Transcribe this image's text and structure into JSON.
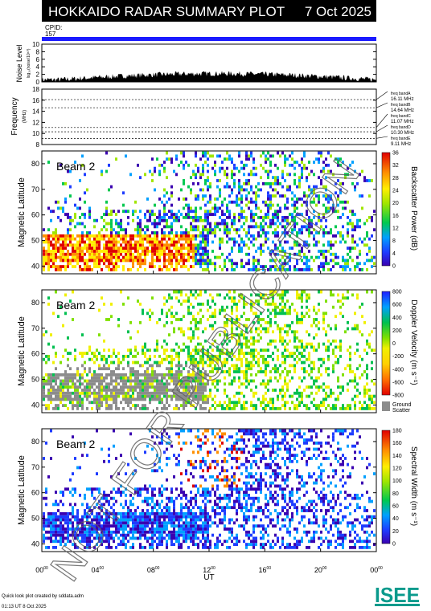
{
  "header": {
    "title": "HOKKAIDO RADAR SUMMARY PLOT",
    "date": "7 Oct 2025",
    "cpid_label": "CPID:",
    "cpid_value": "157",
    "bg_color": "#000000",
    "cpid_bar_color": "#1a1aff"
  },
  "noise": {
    "ylabel": "Noise Level",
    "ylabel_sub": "log₁₀(noise/10⁶⁰)",
    "ylim": [
      0,
      10
    ],
    "ticks": [
      "0",
      "2",
      "4",
      "6",
      "8",
      "10"
    ]
  },
  "frequency": {
    "ylabel": "Frequency",
    "ylabel_unit": "(MHz)",
    "ylim": [
      8,
      18
    ],
    "ticks": [
      "8",
      "10",
      "12",
      "14",
      "16",
      "18"
    ],
    "bands": [
      {
        "label": "freq bandA",
        "value": "16.11 MHz",
        "mhz": 16.11
      },
      {
        "label": "freq bandB",
        "value": "14.64 MHz",
        "mhz": 14.64
      },
      {
        "label": "freq bandC",
        "value": "11.07 MHz",
        "mhz": 11.07
      },
      {
        "label": "freq bandD",
        "value": "10.30 MHz",
        "mhz": 10.3
      },
      {
        "label": "freq bandE",
        "value": "9.11 MHz",
        "mhz": 9.11
      }
    ]
  },
  "chart_data": [
    {
      "type": "heatmap",
      "panel": "backscatter-power",
      "beam_label": "Beam 2",
      "ylabel": "Magnetic Latitude",
      "ylim": [
        37,
        85
      ],
      "yticks": [
        40,
        50,
        60,
        70,
        80
      ],
      "x_range_ut_hours": [
        0,
        24
      ],
      "colorbar_label": "Backscatter Power (dB)",
      "colorbar_range": [
        0,
        36
      ],
      "colorbar_ticks": [
        0,
        4,
        8,
        12,
        16,
        20,
        24,
        28,
        32,
        36
      ]
    },
    {
      "type": "heatmap",
      "panel": "doppler-velocity",
      "beam_label": "Beam 2",
      "ylabel": "Magnetic Latitude",
      "ylim": [
        37,
        85
      ],
      "yticks": [
        40,
        50,
        60,
        70,
        80
      ],
      "x_range_ut_hours": [
        0,
        24
      ],
      "colorbar_label": "Doppler Velocity (m s⁻¹)",
      "colorbar_range": [
        -800,
        800
      ],
      "colorbar_ticks": [
        800,
        600,
        400,
        200,
        0,
        -200,
        -400,
        -600,
        -800
      ],
      "extra_legend": [
        "Ground",
        "Scatter"
      ]
    },
    {
      "type": "heatmap",
      "panel": "spectral-width",
      "beam_label": "Beam 2",
      "ylabel": "Magnetic Latitude",
      "ylim": [
        37,
        85
      ],
      "yticks": [
        40,
        50,
        60,
        70,
        80
      ],
      "x_range_ut_hours": [
        0,
        24
      ],
      "colorbar_label": "Spectral Width (m s⁻¹)",
      "colorbar_range": [
        0,
        180
      ],
      "colorbar_ticks": [
        0,
        20,
        40,
        60,
        80,
        100,
        120,
        140,
        160,
        180
      ]
    }
  ],
  "xaxis": {
    "label": "UT",
    "ticks": [
      {
        "h": "00",
        "m": "00",
        "hour": 0
      },
      {
        "h": "04",
        "m": "00",
        "hour": 4
      },
      {
        "h": "08",
        "m": "00",
        "hour": 8
      },
      {
        "h": "12",
        "m": "00",
        "hour": 12
      },
      {
        "h": "16",
        "m": "00",
        "hour": 16
      },
      {
        "h": "20",
        "m": "00",
        "hour": 20
      },
      {
        "h": "00",
        "m": "00",
        "hour": 24
      }
    ]
  },
  "footer": {
    "credit": "Quick look plot created by sddata.adm",
    "timestamp": "01:13 UT  8 Oct 2025",
    "logo_text": "ISEE",
    "logo_color": "#0a9a8c"
  },
  "watermark": "NOT FOR PUBLICATION"
}
